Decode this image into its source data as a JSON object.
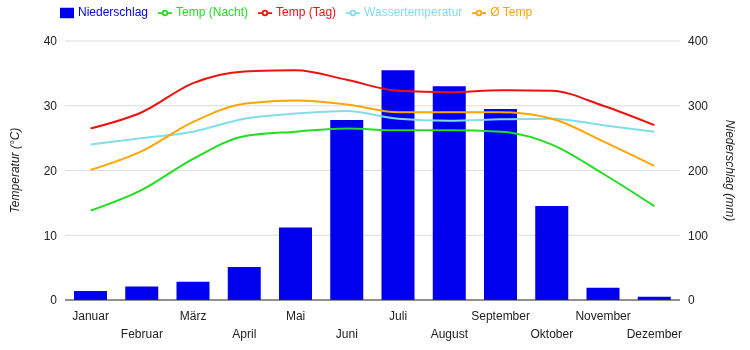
{
  "chart_data": {
    "type": "combo",
    "categories": [
      "Januar",
      "Februar",
      "März",
      "April",
      "Mai",
      "Juni",
      "Juli",
      "August",
      "September",
      "Oktober",
      "November",
      "Dezember"
    ],
    "series": [
      {
        "name": "Niederschlag",
        "type": "bar",
        "axis": "y2",
        "color": "#0000ee",
        "values": [
          14,
          21,
          28,
          51,
          112,
          278,
          355,
          330,
          295,
          145,
          19,
          5
        ]
      },
      {
        "name": "Wassertemperatur",
        "type": "line",
        "color": "#80deea",
        "values": [
          24,
          25,
          26,
          28,
          28.8,
          29.2,
          28,
          27.7,
          27.9,
          28,
          27,
          26
        ]
      },
      {
        "name": "Temp (Tag)",
        "type": "line",
        "color": "#ee1111",
        "values": [
          26.5,
          29,
          33.5,
          35.3,
          35.5,
          34,
          32.3,
          32.1,
          32.4,
          32.3,
          30,
          27
        ]
      },
      {
        "name": "Ø Temp",
        "type": "line",
        "color": "#ffa500",
        "values": [
          20.1,
          23,
          27.5,
          30.3,
          30.8,
          30.2,
          29,
          29,
          29,
          28,
          24.5,
          20.7
        ]
      },
      {
        "name": "Temp (Nacht)",
        "type": "line",
        "color": "#22dd22",
        "values": [
          13.8,
          17,
          21.8,
          25.3,
          26,
          26.5,
          26.2,
          26.2,
          26,
          24,
          19.5,
          14.5
        ]
      }
    ],
    "ylabel": "Temperatur (°C)",
    "y2label": "Niederschlag (mm)",
    "ylim": [
      0,
      40
    ],
    "yticks": [
      0,
      10,
      20,
      30,
      40
    ],
    "y2lim": [
      0,
      400
    ],
    "y2ticks": [
      0,
      100,
      200,
      300,
      400
    ],
    "grid": true,
    "legend": "top"
  }
}
